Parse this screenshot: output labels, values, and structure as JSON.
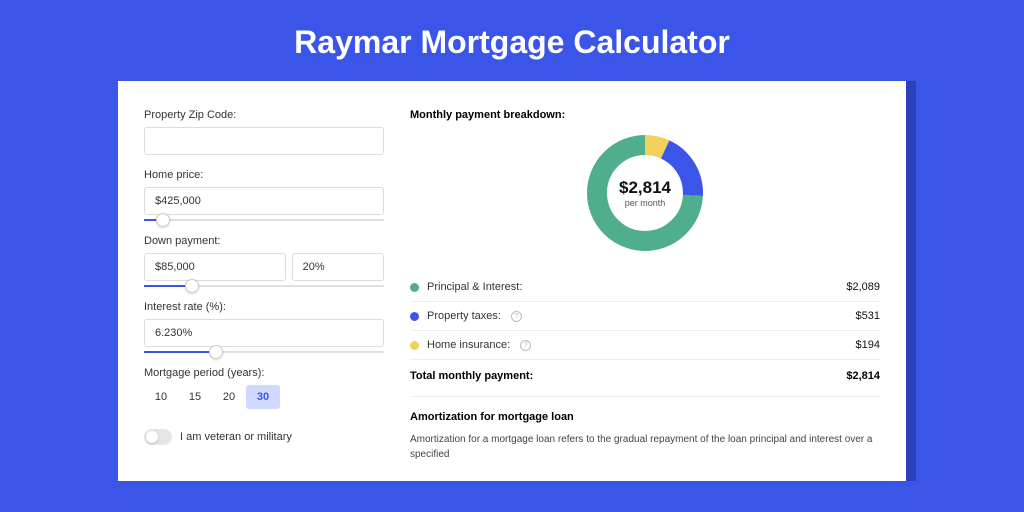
{
  "page": {
    "title": "Raymar Mortgage Calculator",
    "background_color": "#3a55e8",
    "card_background": "#ffffff",
    "shadow_color": "#2a3fb8"
  },
  "form": {
    "zip": {
      "label": "Property Zip Code:",
      "value": ""
    },
    "home_price": {
      "label": "Home price:",
      "value": "$425,000",
      "slider_pct": 8
    },
    "down_payment": {
      "label": "Down payment:",
      "amount": "$85,000",
      "percent": "20%",
      "slider_pct": 20
    },
    "interest_rate": {
      "label": "Interest rate (%):",
      "value": "6.230%",
      "slider_pct": 30
    },
    "period": {
      "label": "Mortgage period (years):",
      "options": [
        "10",
        "15",
        "20",
        "30"
      ],
      "selected": "30"
    },
    "veteran": {
      "label": "I am veteran or military",
      "on": false
    }
  },
  "breakdown": {
    "title": "Monthly payment breakdown:",
    "center_amount": "$2,814",
    "center_sub": "per month",
    "items": [
      {
        "label": "Principal & Interest:",
        "value": "$2,089",
        "color": "#4fae8b",
        "info": false,
        "share": 0.742
      },
      {
        "label": "Property taxes:",
        "value": "$531",
        "color": "#3a55e8",
        "info": true,
        "share": 0.189
      },
      {
        "label": "Home insurance:",
        "value": "$194",
        "color": "#f3cf5b",
        "info": true,
        "share": 0.069
      }
    ],
    "total_label": "Total monthly payment:",
    "total_value": "$2,814",
    "donut": {
      "radius": 48,
      "stroke_width": 20
    }
  },
  "amortization": {
    "title": "Amortization for mortgage loan",
    "text": "Amortization for a mortgage loan refers to the gradual repayment of the loan principal and interest over a specified"
  }
}
